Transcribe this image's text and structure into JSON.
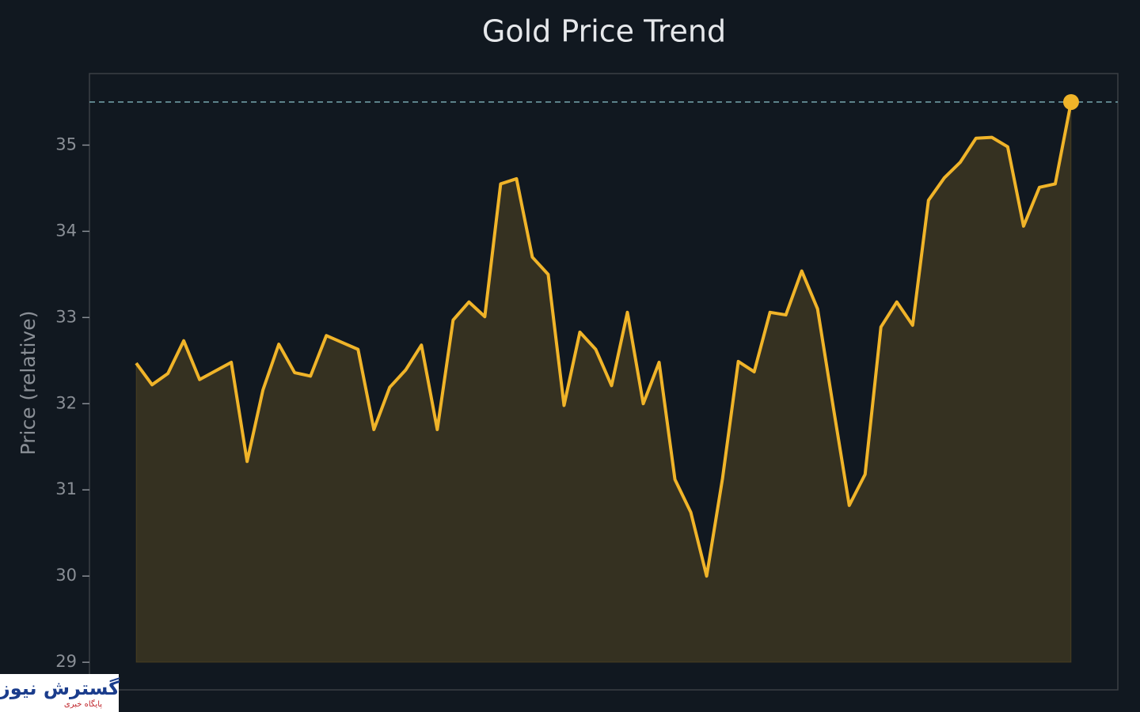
{
  "chart_data": {
    "type": "line",
    "title": "Gold Price Trend",
    "y_label": "Price (relative)",
    "values": [
      32.47,
      32.22,
      32.35,
      32.73,
      32.28,
      32.38,
      32.48,
      31.33,
      32.16,
      32.69,
      32.36,
      32.32,
      32.79,
      32.71,
      32.63,
      31.7,
      32.19,
      32.39,
      32.68,
      31.7,
      32.97,
      33.18,
      33.01,
      34.55,
      34.61,
      33.7,
      33.5,
      31.98,
      32.83,
      32.63,
      32.21,
      33.06,
      32.0,
      32.48,
      31.12,
      30.74,
      30.0,
      31.13,
      32.49,
      32.37,
      33.06,
      33.03,
      33.54,
      33.1,
      31.95,
      30.82,
      31.18,
      32.89,
      33.18,
      32.91,
      34.36,
      34.62,
      34.8,
      35.08,
      35.09,
      34.98,
      34.06,
      34.51,
      34.55,
      35.5
    ],
    "color": "#f0b429",
    "ylim": [
      28.68,
      35.83
    ],
    "yticks": [
      29,
      30,
      31,
      32,
      33,
      34,
      35
    ],
    "grid": false,
    "area_fill": true,
    "highlight_last": true
  },
  "watermark": {
    "title": "گسترش نیوز",
    "subtitle": "پایگاه خبری"
  }
}
